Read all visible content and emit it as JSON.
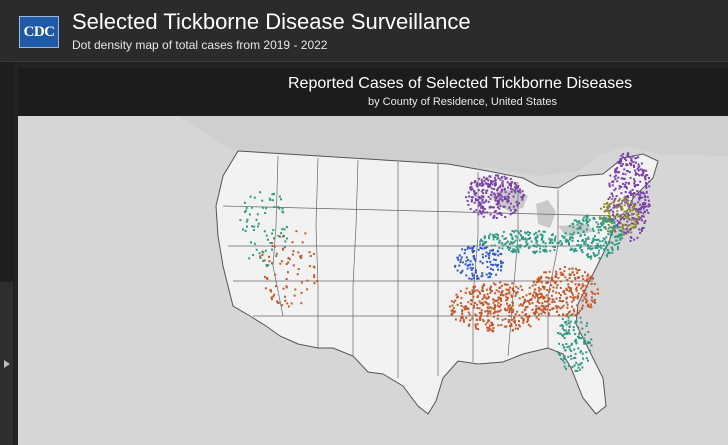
{
  "header": {
    "logo_text": "CDC",
    "logo_icon": "cdc-logo",
    "title": "Selected Tickborne Disease Surveillance",
    "subtitle": "Dot density map of total cases from 2019 - 2022"
  },
  "sidebar": {
    "expand_icon": "chevron-right-icon"
  },
  "map": {
    "title": "Reported Cases of Selected Tickborne Diseases",
    "subtitle": "by County of Residence, United States"
  },
  "colors": {
    "header_bg": "#2b2b2b",
    "panel_bg": "#1a1a1a",
    "map_bg": "#d6d6d6",
    "land": "#f2f2f2",
    "ocean": "#d6d6d6",
    "border": "#555555",
    "dot_purple": "#7b3fa8",
    "dot_teal": "#2e9a84",
    "dot_orange": "#c4582a",
    "dot_blue": "#2f57c8",
    "dot_olive": "#8a8a2a"
  }
}
